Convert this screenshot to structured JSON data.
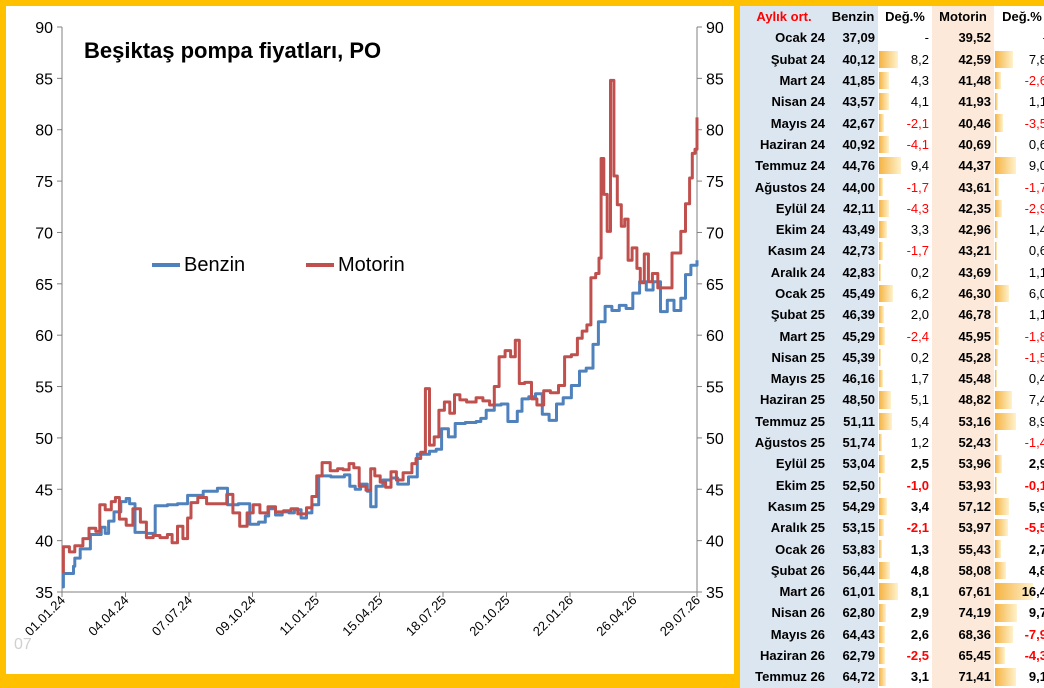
{
  "chart_data": {
    "type": "line",
    "title": "Beşiktaş pompa fiyatları, PO",
    "xlabel": "",
    "ylabel": "",
    "ylim": [
      35,
      90
    ],
    "yticks": [
      "35",
      "40",
      "45",
      "50",
      "55",
      "60",
      "65",
      "70",
      "75",
      "80",
      "85",
      "90"
    ],
    "xticks": [
      "01.01.24",
      "04.04.24",
      "07.07.24",
      "09.10.24",
      "11.01.25",
      "15.04.25",
      "18.07.25",
      "20.10.25",
      "22.01.26",
      "26.04.26",
      "29.07.26"
    ],
    "legend_position": "center-left",
    "grid": false,
    "watermark": "07",
    "series": [
      {
        "name": "Benzin",
        "color": "#4F81BD",
        "points": [
          [
            "2024-01-01",
            35.5
          ],
          [
            "2024-01-03",
            36.8
          ],
          [
            "2024-01-18",
            37.5
          ],
          [
            "2024-01-20",
            38.3
          ],
          [
            "2024-01-28",
            39.2
          ],
          [
            "2024-02-12",
            40.6
          ],
          [
            "2024-02-28",
            41.3
          ],
          [
            "2024-03-05",
            40.7
          ],
          [
            "2024-03-10",
            41.9
          ],
          [
            "2024-03-18",
            42.8
          ],
          [
            "2024-03-28",
            43.8
          ],
          [
            "2024-04-05",
            44.1
          ],
          [
            "2024-04-10",
            43.6
          ],
          [
            "2024-04-18",
            40.8
          ],
          [
            "2024-05-05",
            40.7
          ],
          [
            "2024-05-18",
            43.4
          ],
          [
            "2024-06-05",
            43.5
          ],
          [
            "2024-06-20",
            43.6
          ],
          [
            "2024-07-05",
            44.4
          ],
          [
            "2024-07-28",
            44.8
          ],
          [
            "2024-08-18",
            45.1
          ],
          [
            "2024-09-02",
            43.5
          ],
          [
            "2024-09-18",
            43.6
          ],
          [
            "2024-10-05",
            41.6
          ],
          [
            "2024-10-18",
            41.8
          ],
          [
            "2024-10-28",
            42.4
          ],
          [
            "2024-11-02",
            43.1
          ],
          [
            "2024-11-12",
            42.5
          ],
          [
            "2024-11-22",
            42.8
          ],
          [
            "2024-12-02",
            42.7
          ],
          [
            "2024-12-10",
            43.0
          ],
          [
            "2024-12-20",
            42.2
          ],
          [
            "2024-12-28",
            42.7
          ],
          [
            "2025-01-05",
            43.5
          ],
          [
            "2025-01-15",
            46.3
          ],
          [
            "2025-02-02",
            46.2
          ],
          [
            "2025-02-12",
            46.2
          ],
          [
            "2025-02-22",
            46.4
          ],
          [
            "2025-03-02",
            45.3
          ],
          [
            "2025-03-10",
            45.0
          ],
          [
            "2025-03-18",
            45.5
          ],
          [
            "2025-03-28",
            44.8
          ],
          [
            "2025-04-02",
            43.3
          ],
          [
            "2025-04-10",
            45.3
          ],
          [
            "2025-04-20",
            45.9
          ],
          [
            "2025-05-02",
            46.1
          ],
          [
            "2025-05-12",
            45.5
          ],
          [
            "2025-05-28",
            46.2
          ],
          [
            "2025-06-10",
            48.4
          ],
          [
            "2025-06-28",
            48.7
          ],
          [
            "2025-07-08",
            48.9
          ],
          [
            "2025-07-16",
            50.9
          ],
          [
            "2025-07-26",
            50.1
          ],
          [
            "2025-08-05",
            51.4
          ],
          [
            "2025-08-20",
            51.5
          ],
          [
            "2025-09-05",
            51.6
          ],
          [
            "2025-09-12",
            51.9
          ],
          [
            "2025-09-20",
            52.7
          ],
          [
            "2025-10-02",
            53.2
          ],
          [
            "2025-10-12",
            53.3
          ],
          [
            "2025-10-22",
            51.6
          ],
          [
            "2025-11-05",
            52.6
          ],
          [
            "2025-11-12",
            53.8
          ],
          [
            "2025-11-22",
            54.0
          ],
          [
            "2025-12-02",
            54.3
          ],
          [
            "2025-12-12",
            52.3
          ],
          [
            "2025-12-22",
            51.7
          ],
          [
            "2026-01-02",
            53.3
          ],
          [
            "2026-01-12",
            53.9
          ],
          [
            "2026-01-24",
            55.1
          ],
          [
            "2026-02-05",
            56.5
          ],
          [
            "2026-02-15",
            56.8
          ],
          [
            "2026-02-25",
            59.1
          ],
          [
            "2026-03-05",
            61.3
          ],
          [
            "2026-03-15",
            62.8
          ],
          [
            "2026-03-25",
            62.4
          ],
          [
            "2026-04-05",
            62.9
          ],
          [
            "2026-04-15",
            62.6
          ],
          [
            "2026-04-25",
            64.1
          ],
          [
            "2026-05-05",
            65.2
          ],
          [
            "2026-05-15",
            64.4
          ],
          [
            "2026-05-25",
            65.2
          ],
          [
            "2026-06-05",
            62.3
          ],
          [
            "2026-06-15",
            63.4
          ],
          [
            "2026-06-25",
            62.4
          ],
          [
            "2026-07-05",
            63.6
          ],
          [
            "2026-07-12",
            65.9
          ],
          [
            "2026-07-20",
            66.8
          ],
          [
            "2026-07-29",
            67.3
          ]
        ]
      },
      {
        "name": "Motorin",
        "color": "#C0504D",
        "points": [
          [
            "2024-01-01",
            37.0
          ],
          [
            "2024-01-03",
            39.4
          ],
          [
            "2024-01-12",
            38.9
          ],
          [
            "2024-01-20",
            39.5
          ],
          [
            "2024-02-01",
            40.2
          ],
          [
            "2024-02-10",
            41.2
          ],
          [
            "2024-02-20",
            40.9
          ],
          [
            "2024-02-26",
            43.5
          ],
          [
            "2024-03-05",
            43.0
          ],
          [
            "2024-03-14",
            43.8
          ],
          [
            "2024-03-20",
            44.2
          ],
          [
            "2024-03-26",
            42.1
          ],
          [
            "2024-04-05",
            41.5
          ],
          [
            "2024-04-15",
            43.1
          ],
          [
            "2024-04-26",
            41.8
          ],
          [
            "2024-05-05",
            40.3
          ],
          [
            "2024-05-15",
            40.5
          ],
          [
            "2024-05-25",
            40.3
          ],
          [
            "2024-06-05",
            40.6
          ],
          [
            "2024-06-12",
            39.8
          ],
          [
            "2024-06-20",
            41.4
          ],
          [
            "2024-06-28",
            40.2
          ],
          [
            "2024-07-05",
            42.2
          ],
          [
            "2024-07-10",
            43.7
          ],
          [
            "2024-07-20",
            44.2
          ],
          [
            "2024-08-02",
            43.6
          ],
          [
            "2024-08-20",
            43.6
          ],
          [
            "2024-09-01",
            44.5
          ],
          [
            "2024-09-10",
            42.7
          ],
          [
            "2024-09-20",
            41.4
          ],
          [
            "2024-10-01",
            42.7
          ],
          [
            "2024-10-10",
            43.5
          ],
          [
            "2024-10-20",
            42.7
          ],
          [
            "2024-11-01",
            43.3
          ],
          [
            "2024-11-12",
            42.8
          ],
          [
            "2024-11-24",
            42.9
          ],
          [
            "2024-12-05",
            43.1
          ],
          [
            "2024-12-15",
            42.6
          ],
          [
            "2024-12-28",
            43.2
          ],
          [
            "2025-01-05",
            44.3
          ],
          [
            "2025-01-12",
            46.3
          ],
          [
            "2025-01-20",
            47.6
          ],
          [
            "2025-02-01",
            46.8
          ],
          [
            "2025-02-12",
            47.0
          ],
          [
            "2025-02-20",
            46.9
          ],
          [
            "2025-03-01",
            47.5
          ],
          [
            "2025-03-08",
            47.1
          ],
          [
            "2025-03-16",
            45.3
          ],
          [
            "2025-03-26",
            44.9
          ],
          [
            "2025-04-02",
            47.0
          ],
          [
            "2025-04-08",
            46.3
          ],
          [
            "2025-04-16",
            45.7
          ],
          [
            "2025-04-24",
            45.2
          ],
          [
            "2025-05-02",
            46.7
          ],
          [
            "2025-05-10",
            45.9
          ],
          [
            "2025-05-20",
            46.6
          ],
          [
            "2025-06-02",
            47.5
          ],
          [
            "2025-06-08",
            48.0
          ],
          [
            "2025-06-15",
            48.6
          ],
          [
            "2025-06-22",
            54.8
          ],
          [
            "2025-06-28",
            49.3
          ],
          [
            "2025-07-05",
            50.1
          ],
          [
            "2025-07-12",
            52.7
          ],
          [
            "2025-07-20",
            53.5
          ],
          [
            "2025-07-28",
            52.4
          ],
          [
            "2025-08-04",
            54.2
          ],
          [
            "2025-08-12",
            53.7
          ],
          [
            "2025-08-22",
            53.5
          ],
          [
            "2025-09-05",
            53.9
          ],
          [
            "2025-09-15",
            53.6
          ],
          [
            "2025-09-25",
            53.2
          ],
          [
            "2025-10-02",
            55.0
          ],
          [
            "2025-10-09",
            57.9
          ],
          [
            "2025-10-18",
            58.5
          ],
          [
            "2025-10-26",
            57.9
          ],
          [
            "2025-11-02",
            59.5
          ],
          [
            "2025-11-08",
            55.3
          ],
          [
            "2025-11-16",
            55.4
          ],
          [
            "2025-11-26",
            53.8
          ],
          [
            "2025-12-04",
            53.2
          ],
          [
            "2025-12-14",
            54.6
          ],
          [
            "2025-12-24",
            54.4
          ],
          [
            "2026-01-05",
            55.1
          ],
          [
            "2026-01-14",
            57.9
          ],
          [
            "2026-01-24",
            58.1
          ],
          [
            "2026-02-02",
            59.7
          ],
          [
            "2026-02-09",
            60.4
          ],
          [
            "2026-02-16",
            61.0
          ],
          [
            "2026-02-22",
            65.6
          ],
          [
            "2026-03-01",
            66.0
          ],
          [
            "2026-03-06",
            67.5
          ],
          [
            "2026-03-09",
            77.2
          ],
          [
            "2026-03-13",
            73.7
          ],
          [
            "2026-03-18",
            70.1
          ],
          [
            "2026-03-23",
            84.8
          ],
          [
            "2026-03-28",
            75.5
          ],
          [
            "2026-04-02",
            72.7
          ],
          [
            "2026-04-08",
            70.6
          ],
          [
            "2026-04-13",
            71.3
          ],
          [
            "2026-04-18",
            67.3
          ],
          [
            "2026-04-24",
            68.5
          ],
          [
            "2026-05-01",
            66.5
          ],
          [
            "2026-05-06",
            65.1
          ],
          [
            "2026-05-12",
            67.9
          ],
          [
            "2026-05-18",
            65.2
          ],
          [
            "2026-05-24",
            66.0
          ],
          [
            "2026-06-01",
            64.6
          ],
          [
            "2026-06-10",
            64.6
          ],
          [
            "2026-06-22",
            68.0
          ],
          [
            "2026-07-05",
            70.1
          ],
          [
            "2026-07-12",
            72.8
          ],
          [
            "2026-07-18",
            75.3
          ],
          [
            "2026-07-22",
            77.7
          ],
          [
            "2026-07-26",
            78.1
          ],
          [
            "2026-07-29",
            81.2
          ]
        ]
      }
    ]
  },
  "table": {
    "headers": [
      "Aylık ort.",
      "Benzin",
      "Değ.%",
      "Motorin",
      "Değ.%"
    ],
    "rows": [
      [
        "Ocak 24",
        "37,09",
        "-",
        "39,52",
        "-"
      ],
      [
        "Şubat 24",
        "40,12",
        "8,2",
        "42,59",
        "7,8"
      ],
      [
        "Mart 24",
        "41,85",
        "4,3",
        "41,48",
        "-2,6"
      ],
      [
        "Nisan 24",
        "43,57",
        "4,1",
        "41,93",
        "1,1"
      ],
      [
        "Mayıs 24",
        "42,67",
        "-2,1",
        "40,46",
        "-3,5"
      ],
      [
        "Haziran 24",
        "40,92",
        "-4,1",
        "40,69",
        "0,6"
      ],
      [
        "Temmuz 24",
        "44,76",
        "9,4",
        "44,37",
        "9,0"
      ],
      [
        "Ağustos 24",
        "44,00",
        "-1,7",
        "43,61",
        "-1,7"
      ],
      [
        "Eylül 24",
        "42,11",
        "-4,3",
        "42,35",
        "-2,9"
      ],
      [
        "Ekim 24",
        "43,49",
        "3,3",
        "42,96",
        "1,4"
      ],
      [
        "Kasım 24",
        "42,73",
        "-1,7",
        "43,21",
        "0,6"
      ],
      [
        "Aralık 24",
        "42,83",
        "0,2",
        "43,69",
        "1,1"
      ],
      [
        "Ocak 25",
        "45,49",
        "6,2",
        "46,30",
        "6,0"
      ],
      [
        "Şubat 25",
        "46,39",
        "2,0",
        "46,78",
        "1,1"
      ],
      [
        "Mart 25",
        "45,29",
        "-2,4",
        "45,95",
        "-1,8"
      ],
      [
        "Nisan 25",
        "45,39",
        "0,2",
        "45,28",
        "-1,5"
      ],
      [
        "Mayıs 25",
        "46,16",
        "1,7",
        "45,48",
        "0,4"
      ],
      [
        "Haziran 25",
        "48,50",
        "5,1",
        "48,82",
        "7,4"
      ],
      [
        "Temmuz 25",
        "51,11",
        "5,4",
        "53,16",
        "8,9"
      ],
      [
        "Ağustos 25",
        "51,74",
        "1,2",
        "52,43",
        "-1,4"
      ],
      [
        "Eylül 25",
        "53,04",
        "2,5",
        "53,96",
        "2,9"
      ],
      [
        "Ekim 25",
        "52,50",
        "-1,0",
        "53,93",
        "-0,1"
      ],
      [
        "Kasım 25",
        "54,29",
        "3,4",
        "57,12",
        "5,9"
      ],
      [
        "Aralık 25",
        "53,15",
        "-2,1",
        "53,97",
        "-5,5"
      ],
      [
        "Ocak 26",
        "53,83",
        "1,3",
        "55,43",
        "2,7"
      ],
      [
        "Şubat 26",
        "56,44",
        "4,8",
        "58,08",
        "4,8"
      ],
      [
        "Mart 26",
        "61,01",
        "8,1",
        "67,61",
        "16,4"
      ],
      [
        "Nisan 26",
        "62,80",
        "2,9",
        "74,19",
        "9,7"
      ],
      [
        "Mayıs 26",
        "64,43",
        "2,6",
        "68,36",
        "-7,9"
      ],
      [
        "Haziran 26",
        "62,79",
        "-2,5",
        "65,45",
        "-4,3"
      ],
      [
        "Temmuz 26",
        "64,72",
        "3,1",
        "71,41",
        "9,1"
      ]
    ],
    "bold_changes": [
      "-1,0",
      "-0,1",
      "-2,1",
      "-5,5",
      "16,4",
      "-7,9",
      "-4,3",
      "9,1",
      "8,1",
      "4,8",
      "2,5",
      "2,9",
      "3,4",
      "5,9",
      "1,3",
      "2,7",
      "2,9",
      "9,7",
      "2,6",
      "-2,5",
      "3,1"
    ]
  },
  "colors": {
    "background": "#FFC000",
    "benzin_column": "#DCE6F1",
    "motorin_column": "#FDE9D9",
    "negative": "#FF0000",
    "header_accent": "#FF0000"
  }
}
